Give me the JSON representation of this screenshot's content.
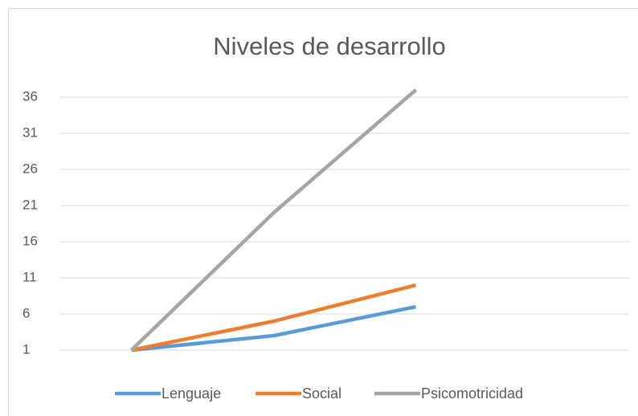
{
  "chart_data": {
    "type": "line",
    "title": "Niveles de desarrollo",
    "categories": [
      null,
      null,
      null,
      null
    ],
    "series": [
      {
        "name": "Lenguaje",
        "color": "#5b9bd5",
        "values": [
          1,
          3,
          7,
          null
        ]
      },
      {
        "name": "Social",
        "color": "#ed7d31",
        "values": [
          1,
          5,
          10,
          null
        ]
      },
      {
        "name": "Psicomotricidad",
        "color": "#a5a5a5",
        "values": [
          1,
          20,
          37,
          null
        ]
      }
    ],
    "ylim": [
      1,
      38
    ],
    "yticks": [
      1,
      6,
      11,
      16,
      21,
      26,
      31,
      36
    ],
    "grid": true,
    "legend": "bottom"
  }
}
